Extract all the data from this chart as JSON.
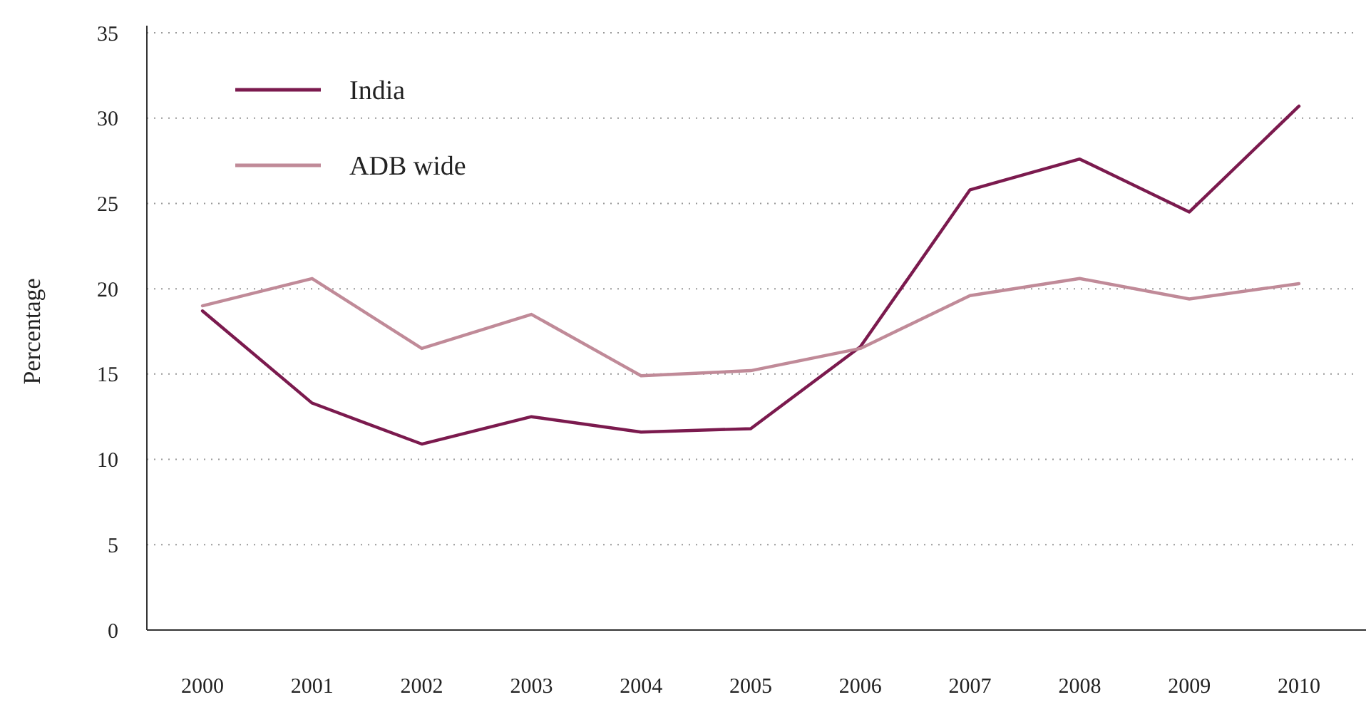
{
  "chart_data": {
    "type": "line",
    "ylabel": "Percentage",
    "categories": [
      "2000",
      "2001",
      "2002",
      "2003",
      "2004",
      "2005",
      "2006",
      "2007",
      "2008",
      "2009",
      "2010"
    ],
    "series": [
      {
        "name": "India",
        "color": "#7b1a4e",
        "values": [
          18.7,
          13.3,
          10.9,
          12.5,
          11.6,
          11.8,
          16.6,
          25.8,
          27.6,
          24.5,
          30.7
        ]
      },
      {
        "name": "ADB wide",
        "color": "#c08a98",
        "values": [
          19.0,
          20.6,
          16.5,
          18.5,
          14.9,
          15.2,
          16.5,
          19.6,
          20.6,
          19.4,
          20.3
        ]
      }
    ],
    "ylim": [
      0,
      35
    ],
    "yticks": [
      0,
      5,
      10,
      15,
      20,
      25,
      30,
      35
    ],
    "grid": "y",
    "legend": "top left",
    "line_style": "solid",
    "marker": "none"
  }
}
